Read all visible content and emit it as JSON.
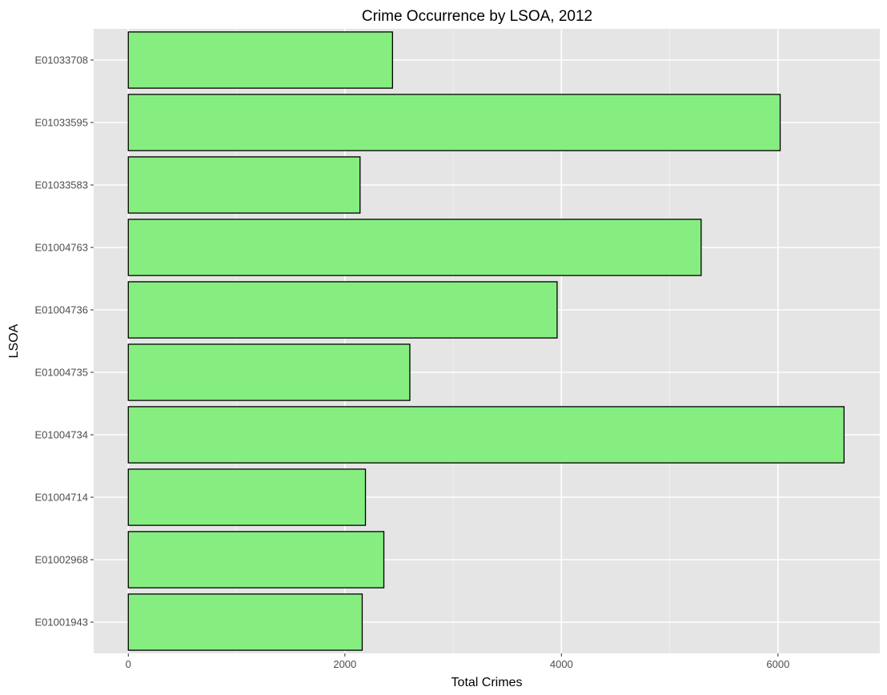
{
  "chart_data": {
    "type": "bar",
    "orientation": "horizontal",
    "title": "Crime Occurrence by LSOA, 2012",
    "xlabel": "Total Crimes",
    "ylabel": "LSOA",
    "categories": [
      "E01033708",
      "E01033595",
      "E01033583",
      "E01004763",
      "E01004736",
      "E01004735",
      "E01004734",
      "E01004714",
      "E01002968",
      "E01001943"
    ],
    "values": [
      2440,
      6020,
      2140,
      5290,
      3960,
      2600,
      6610,
      2190,
      2360,
      2160
    ],
    "xlim": [
      -320,
      6940
    ],
    "x_ticks": [
      0,
      2000,
      4000,
      6000
    ],
    "x_minor_ticks": [
      1000,
      3000,
      5000
    ],
    "grid": true,
    "legend": "none"
  },
  "colors": {
    "bar_fill": "#86ee80",
    "bar_stroke": "#000000",
    "panel_background": "#e5e5e5",
    "grid_major": "#ffffff",
    "grid_minor": "#f2f2f2"
  }
}
